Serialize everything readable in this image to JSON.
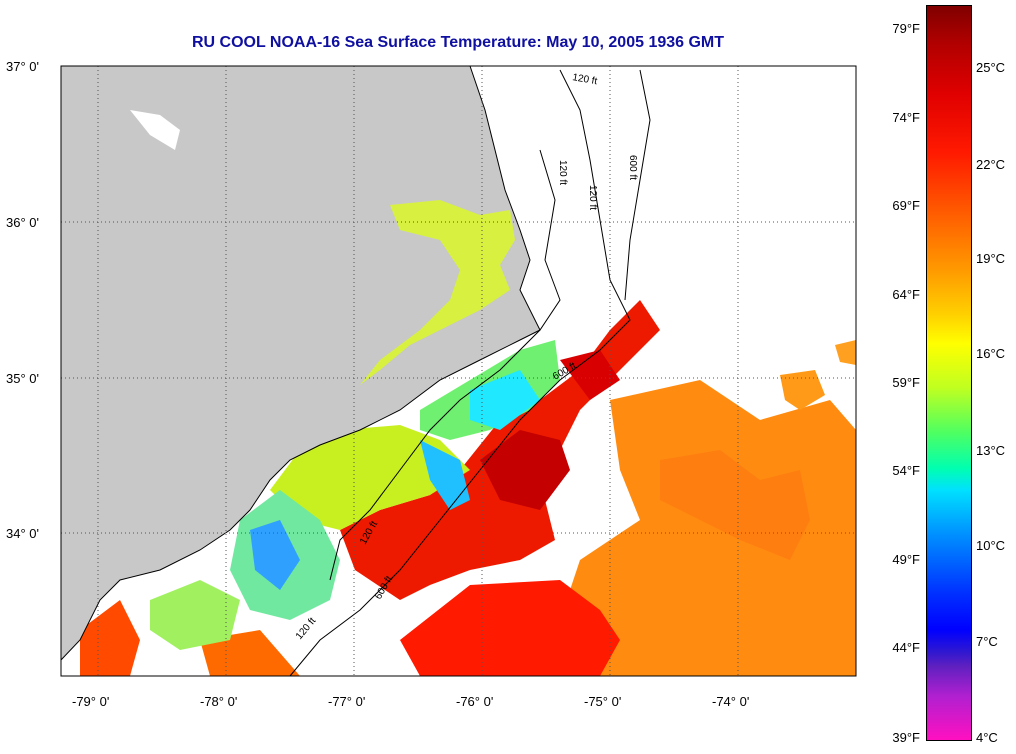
{
  "title": "RU COOL  NOAA-16  Sea Surface Temperature:  May 10, 2005 1936 GMT",
  "lat_labels": [
    "37° 0'",
    "36° 0'",
    "35° 0'",
    "34° 0'"
  ],
  "lon_labels": [
    "-79° 0'",
    "-78° 0'",
    "-77° 0'",
    "-76° 0'",
    "-75° 0'",
    "-74° 0'"
  ],
  "colorbar": {
    "fahrenheit": [
      "79°F",
      "74°F",
      "69°F",
      "64°F",
      "59°F",
      "54°F",
      "49°F",
      "44°F",
      "39°F"
    ],
    "celsius": [
      "25°C",
      "22°C",
      "19°C",
      "16°C",
      "13°C",
      "10°C",
      "7°C",
      "4°C"
    ]
  },
  "contour_labels": [
    "120 ft",
    "120 ft",
    "600 ft",
    "120 ft",
    "600 ft",
    "120 ft",
    "600 ft",
    "120 ft"
  ],
  "colors": {
    "land": "#c8c8c8",
    "title": "#1010a0"
  }
}
